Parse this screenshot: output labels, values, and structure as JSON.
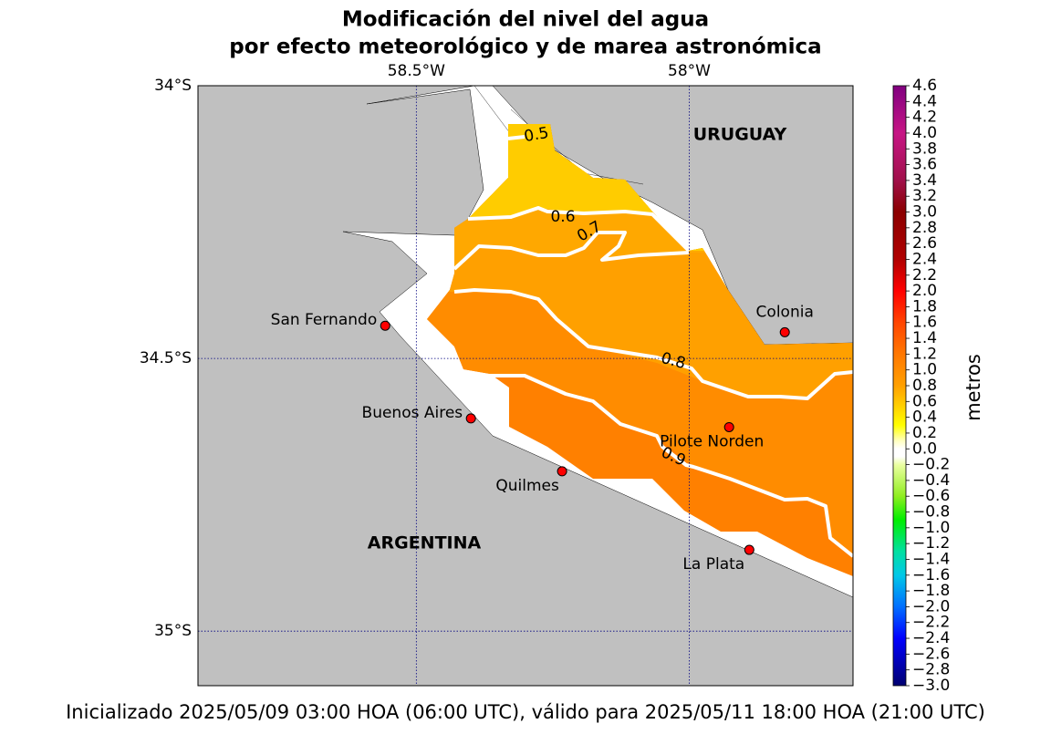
{
  "title": [
    "Modificación del nivel del agua",
    "por efecto meteorológico y de marea astronómica"
  ],
  "map": {
    "lonlim": [
      -58.9,
      -57.7
    ],
    "latlim": [
      -35.1,
      -34
    ],
    "lon_ticks": [
      {
        "value": -58.5,
        "label": "58.5°W"
      },
      {
        "value": -58,
        "label": "58°W"
      }
    ],
    "lat_ticks": [
      {
        "value": -34,
        "label": "34°S"
      },
      {
        "value": -34.5,
        "label": "34.5°S"
      },
      {
        "value": -35,
        "label": "35°S"
      }
    ],
    "countries": [
      "URUGUAY",
      "ARGENTINA"
    ],
    "cities": [
      {
        "name": "San Fernando",
        "lon": -58.557,
        "lat": -34.44
      },
      {
        "name": "Buenos Aires",
        "lon": -58.4,
        "lat": -34.61
      },
      {
        "name": "Quilmes",
        "lon": -58.233,
        "lat": -34.707
      },
      {
        "name": "Pilote Norden",
        "lon": -57.927,
        "lat": -34.626
      },
      {
        "name": "Colonia",
        "lon": -57.825,
        "lat": -34.452
      },
      {
        "name": "La Plata",
        "lon": -57.89,
        "lat": -34.851
      }
    ],
    "contour_levels": [
      0.5,
      0.6,
      0.7,
      0.8,
      0.9
    ]
  },
  "colorbar": {
    "label": "metros",
    "lim": [
      -3,
      4.6
    ],
    "ticks": [
      {
        "value": 4.6,
        "label": "4.6"
      },
      {
        "value": 4.4,
        "label": "4.4"
      },
      {
        "value": 4.2,
        "label": "4.2"
      },
      {
        "value": 4,
        "label": "4.0"
      },
      {
        "value": 3.8,
        "label": "3.8"
      },
      {
        "value": 3.6,
        "label": "3.6"
      },
      {
        "value": 3.4,
        "label": "3.4"
      },
      {
        "value": 3.2,
        "label": "3.2"
      },
      {
        "value": 3,
        "label": "3.0"
      },
      {
        "value": 2.8,
        "label": "2.8"
      },
      {
        "value": 2.6,
        "label": "2.6"
      },
      {
        "value": 2.4,
        "label": "2.4"
      },
      {
        "value": 2.2,
        "label": "2.2"
      },
      {
        "value": 2,
        "label": "2.0"
      },
      {
        "value": 1.8,
        "label": "1.8"
      },
      {
        "value": 1.6,
        "label": "1.6"
      },
      {
        "value": 1.4,
        "label": "1.4"
      },
      {
        "value": 1.2,
        "label": "1.2"
      },
      {
        "value": 1,
        "label": "1.0"
      },
      {
        "value": 0.8,
        "label": "0.8"
      },
      {
        "value": 0.6,
        "label": "0.6"
      },
      {
        "value": 0.4,
        "label": "0.4"
      },
      {
        "value": 0.2,
        "label": "0.2"
      },
      {
        "value": 0,
        "label": "0.0"
      },
      {
        "value": -0.2,
        "label": "−0.2"
      },
      {
        "value": -0.4,
        "label": "−0.4"
      },
      {
        "value": -0.6,
        "label": "−0.6"
      },
      {
        "value": -0.8,
        "label": "−0.8"
      },
      {
        "value": -1,
        "label": "−1.0"
      },
      {
        "value": -1.2,
        "label": "−1.2"
      },
      {
        "value": -1.4,
        "label": "−1.4"
      },
      {
        "value": -1.6,
        "label": "−1.6"
      },
      {
        "value": -1.8,
        "label": "−1.8"
      },
      {
        "value": -2,
        "label": "−2.0"
      },
      {
        "value": -2.2,
        "label": "−2.2"
      },
      {
        "value": -2.4,
        "label": "−2.4"
      },
      {
        "value": -2.6,
        "label": "−2.6"
      },
      {
        "value": -2.8,
        "label": "−2.8"
      },
      {
        "value": -3,
        "label": "−3.0"
      }
    ]
  },
  "footer": "Inicializado 2025/05/09 03:00 HOA (06:00 UTC), válido para 2025/05/11 18:00 HOA (21:00 UTC)"
}
